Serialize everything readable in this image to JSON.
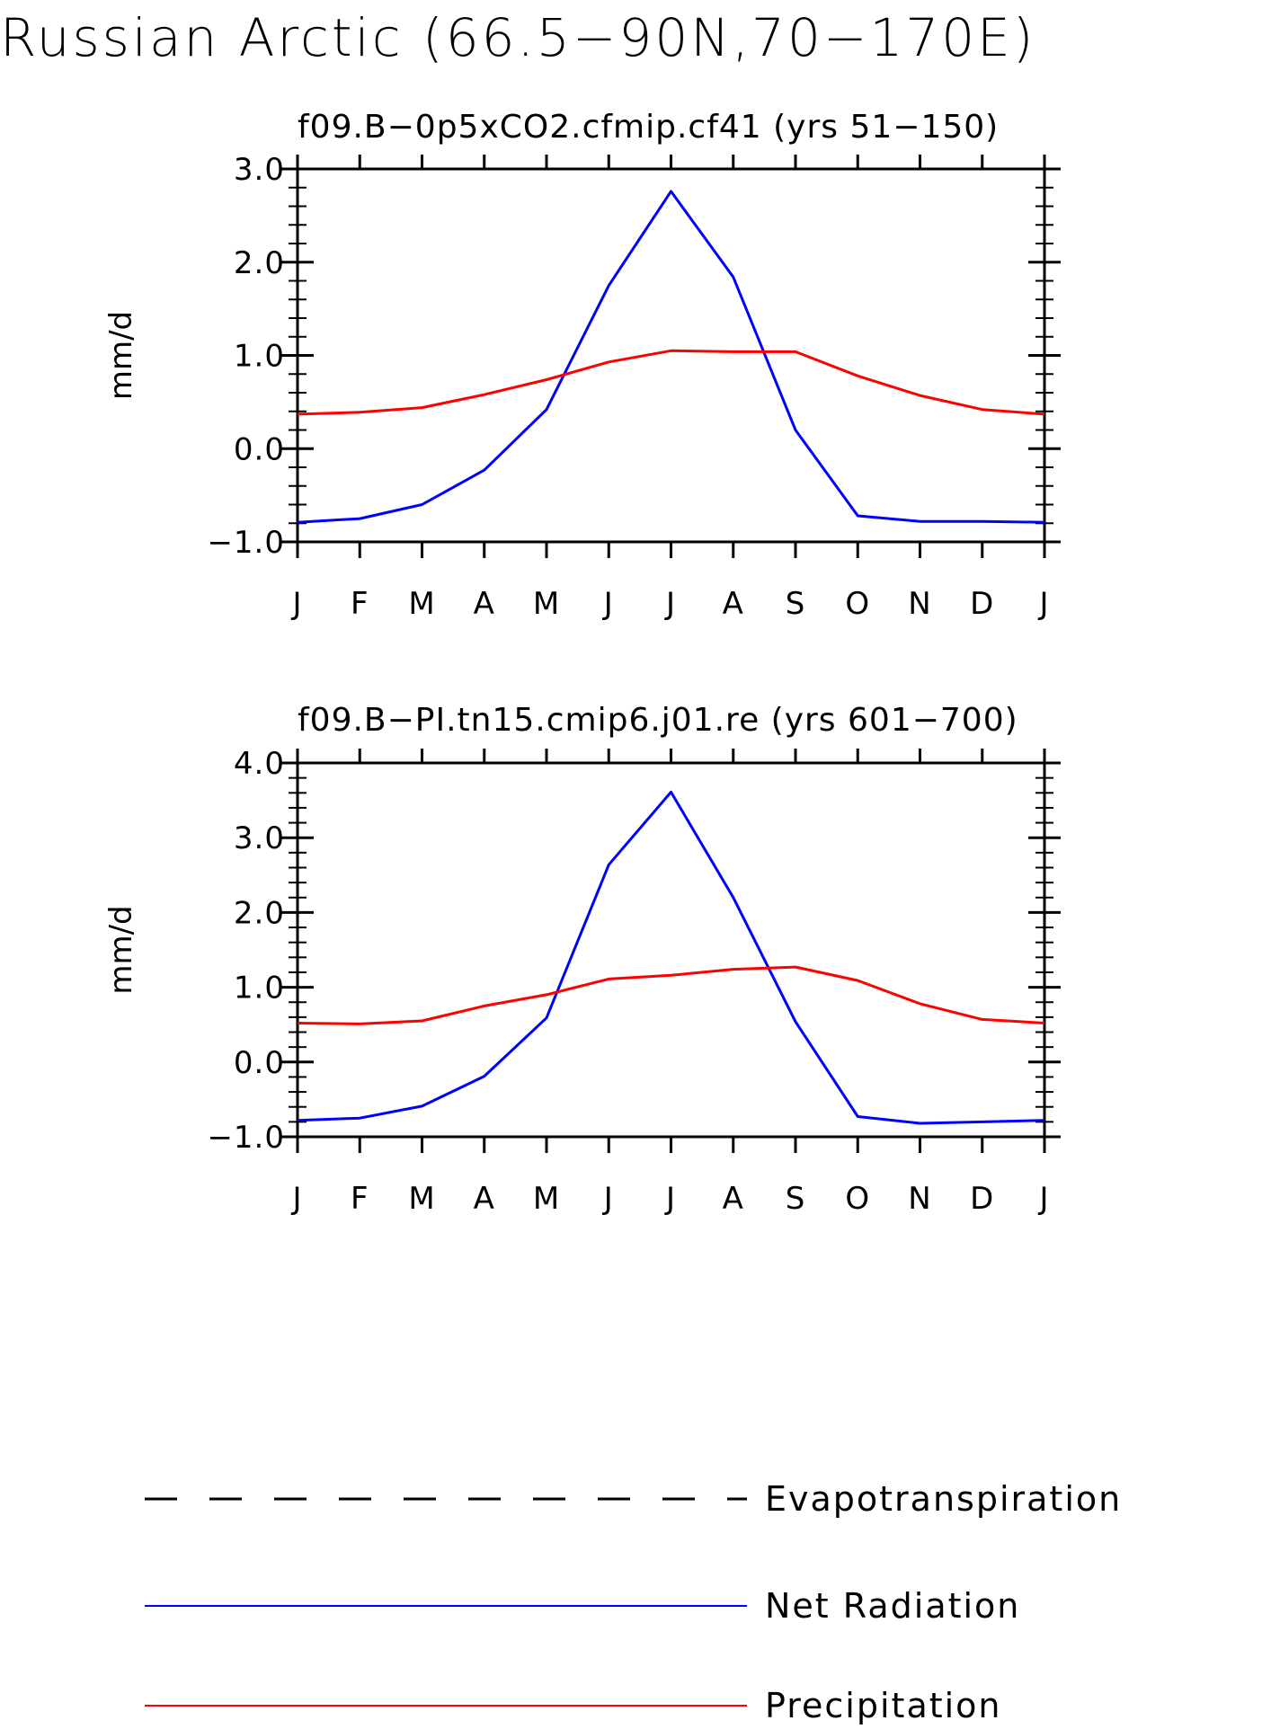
{
  "title": "Russian Arctic (66.5−90N,70−170E)",
  "colors": {
    "net_radiation": "#0000ff",
    "precipitation": "#ff0000",
    "evapotranspiration": "#000000",
    "axes": "#000000"
  },
  "legend": [
    {
      "label": "Evapotranspiration",
      "style": "dashed",
      "color": "#000000"
    },
    {
      "label": "Net Radiation",
      "style": "solid",
      "color": "#0000ff"
    },
    {
      "label": "Precipitation",
      "style": "solid",
      "color": "#ff0000"
    }
  ],
  "chart_data": [
    {
      "type": "line",
      "title": "f09.B−0p5xCO2.cfmip.cf41 (yrs 51−150)",
      "xlabel": "",
      "ylabel": "mm/d",
      "categories": [
        "J",
        "F",
        "M",
        "A",
        "M",
        "J",
        "J",
        "A",
        "S",
        "O",
        "N",
        "D",
        "J"
      ],
      "ylim": [
        -1.0,
        3.0
      ],
      "yticks": [
        "−1.0",
        "0.0",
        "1.0",
        "2.0",
        "3.0"
      ],
      "series": [
        {
          "name": "Net Radiation",
          "color": "#0000ff",
          "values": [
            -0.79,
            -0.75,
            -0.6,
            -0.23,
            0.42,
            1.75,
            2.76,
            1.84,
            0.2,
            -0.72,
            -0.78,
            -0.78,
            -0.79
          ]
        },
        {
          "name": "Precipitation",
          "color": "#ff0000",
          "values": [
            0.37,
            0.39,
            0.44,
            0.58,
            0.74,
            0.93,
            1.05,
            1.04,
            1.04,
            0.78,
            0.57,
            0.42,
            0.37
          ]
        }
      ]
    },
    {
      "type": "line",
      "title": "f09.B−PI.tn15.cmip6.j01.re (yrs 601−700)",
      "xlabel": "",
      "ylabel": "mm/d",
      "categories": [
        "J",
        "F",
        "M",
        "A",
        "M",
        "J",
        "J",
        "A",
        "S",
        "O",
        "N",
        "D",
        "J"
      ],
      "ylim": [
        -1.0,
        4.0
      ],
      "yticks": [
        "−1.0",
        "0.0",
        "1.0",
        "2.0",
        "3.0",
        "4.0"
      ],
      "series": [
        {
          "name": "Net Radiation",
          "color": "#0000ff",
          "values": [
            -0.78,
            -0.75,
            -0.59,
            -0.19,
            0.59,
            2.64,
            3.61,
            2.2,
            0.54,
            -0.73,
            -0.82,
            -0.8,
            -0.78
          ]
        },
        {
          "name": "Precipitation",
          "color": "#ff0000",
          "values": [
            0.52,
            0.51,
            0.55,
            0.75,
            0.9,
            1.11,
            1.16,
            1.24,
            1.27,
            1.09,
            0.78,
            0.57,
            0.52
          ]
        }
      ]
    }
  ]
}
